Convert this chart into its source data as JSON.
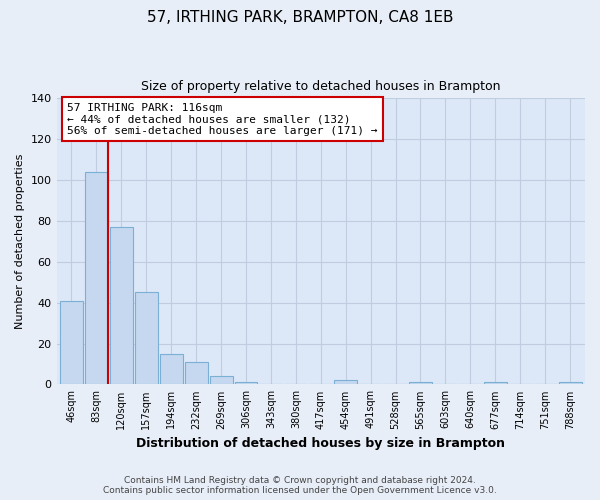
{
  "title": "57, IRTHING PARK, BRAMPTON, CA8 1EB",
  "subtitle": "Size of property relative to detached houses in Brampton",
  "xlabel": "Distribution of detached houses by size in Brampton",
  "ylabel": "Number of detached properties",
  "bar_labels": [
    "46sqm",
    "83sqm",
    "120sqm",
    "157sqm",
    "194sqm",
    "232sqm",
    "269sqm",
    "306sqm",
    "343sqm",
    "380sqm",
    "417sqm",
    "454sqm",
    "491sqm",
    "528sqm",
    "565sqm",
    "603sqm",
    "640sqm",
    "677sqm",
    "714sqm",
    "751sqm",
    "788sqm"
  ],
  "bar_values": [
    41,
    104,
    77,
    45,
    15,
    11,
    4,
    1,
    0,
    0,
    0,
    2,
    0,
    0,
    1,
    0,
    0,
    1,
    0,
    0,
    1
  ],
  "bar_color": "#c5d8f0",
  "bar_edge_color": "#7bafd4",
  "vline_color": "#cc0000",
  "annotation_title": "57 IRTHING PARK: 116sqm",
  "annotation_line1": "← 44% of detached houses are smaller (132)",
  "annotation_line2": "56% of semi-detached houses are larger (171) →",
  "annotation_box_color": "#ffffff",
  "annotation_box_edge": "#cc0000",
  "ylim": [
    0,
    140
  ],
  "yticks": [
    0,
    20,
    40,
    60,
    80,
    100,
    120,
    140
  ],
  "footer_line1": "Contains HM Land Registry data © Crown copyright and database right 2024.",
  "footer_line2": "Contains public sector information licensed under the Open Government Licence v3.0.",
  "bg_color": "#e8eef8",
  "plot_bg_color": "#dce8f8",
  "grid_color": "#c0cce0"
}
